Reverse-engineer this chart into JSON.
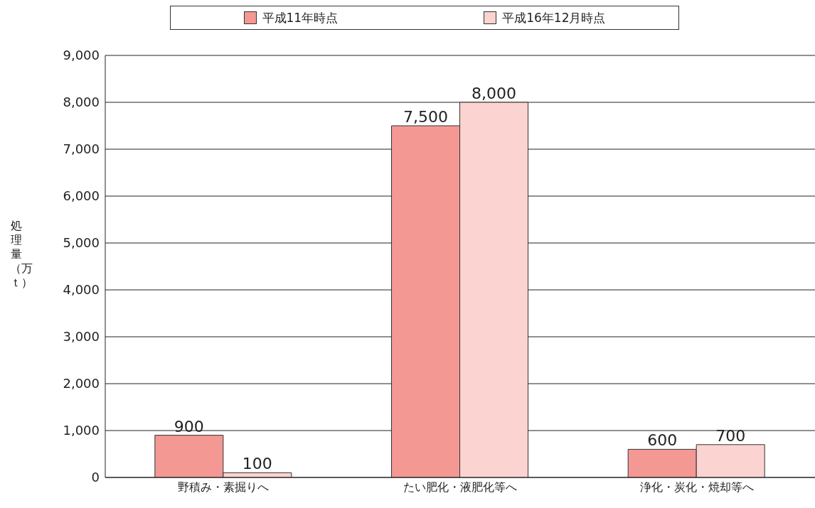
{
  "chart_data": {
    "type": "bar",
    "ylabel": "処理量（万ｔ）",
    "categories": [
      "野積み・素掘りへ",
      "たい肥化・液肥化等へ",
      "浄化・炭化・焼却等へ"
    ],
    "series": [
      {
        "name": "平成11年時点",
        "color": "#f49894",
        "values": [
          900,
          7500,
          600
        ],
        "value_labels": [
          "900",
          "7,500",
          "600"
        ]
      },
      {
        "name": "平成16年12月時点",
        "color": "#fbd3d0",
        "values": [
          100,
          8000,
          700
        ],
        "value_labels": [
          "100",
          "8,000",
          "700"
        ]
      }
    ],
    "ylim": [
      0,
      9000
    ],
    "yticks": [
      0,
      {
        "value": 1000,
        "label": "1,000"
      },
      {
        "value": 2000,
        "label": "2,000"
      },
      {
        "value": 3000,
        "label": "3,000"
      },
      {
        "value": 4000,
        "label": "4,000"
      },
      {
        "value": 5000,
        "label": "5,000"
      },
      {
        "value": 6000,
        "label": "6,000"
      },
      {
        "value": 7000,
        "label": "7,000"
      },
      {
        "value": 8000,
        "label": "8,000"
      },
      {
        "value": 9000,
        "label": "9,000"
      }
    ],
    "grid": "y",
    "legend": "top"
  }
}
